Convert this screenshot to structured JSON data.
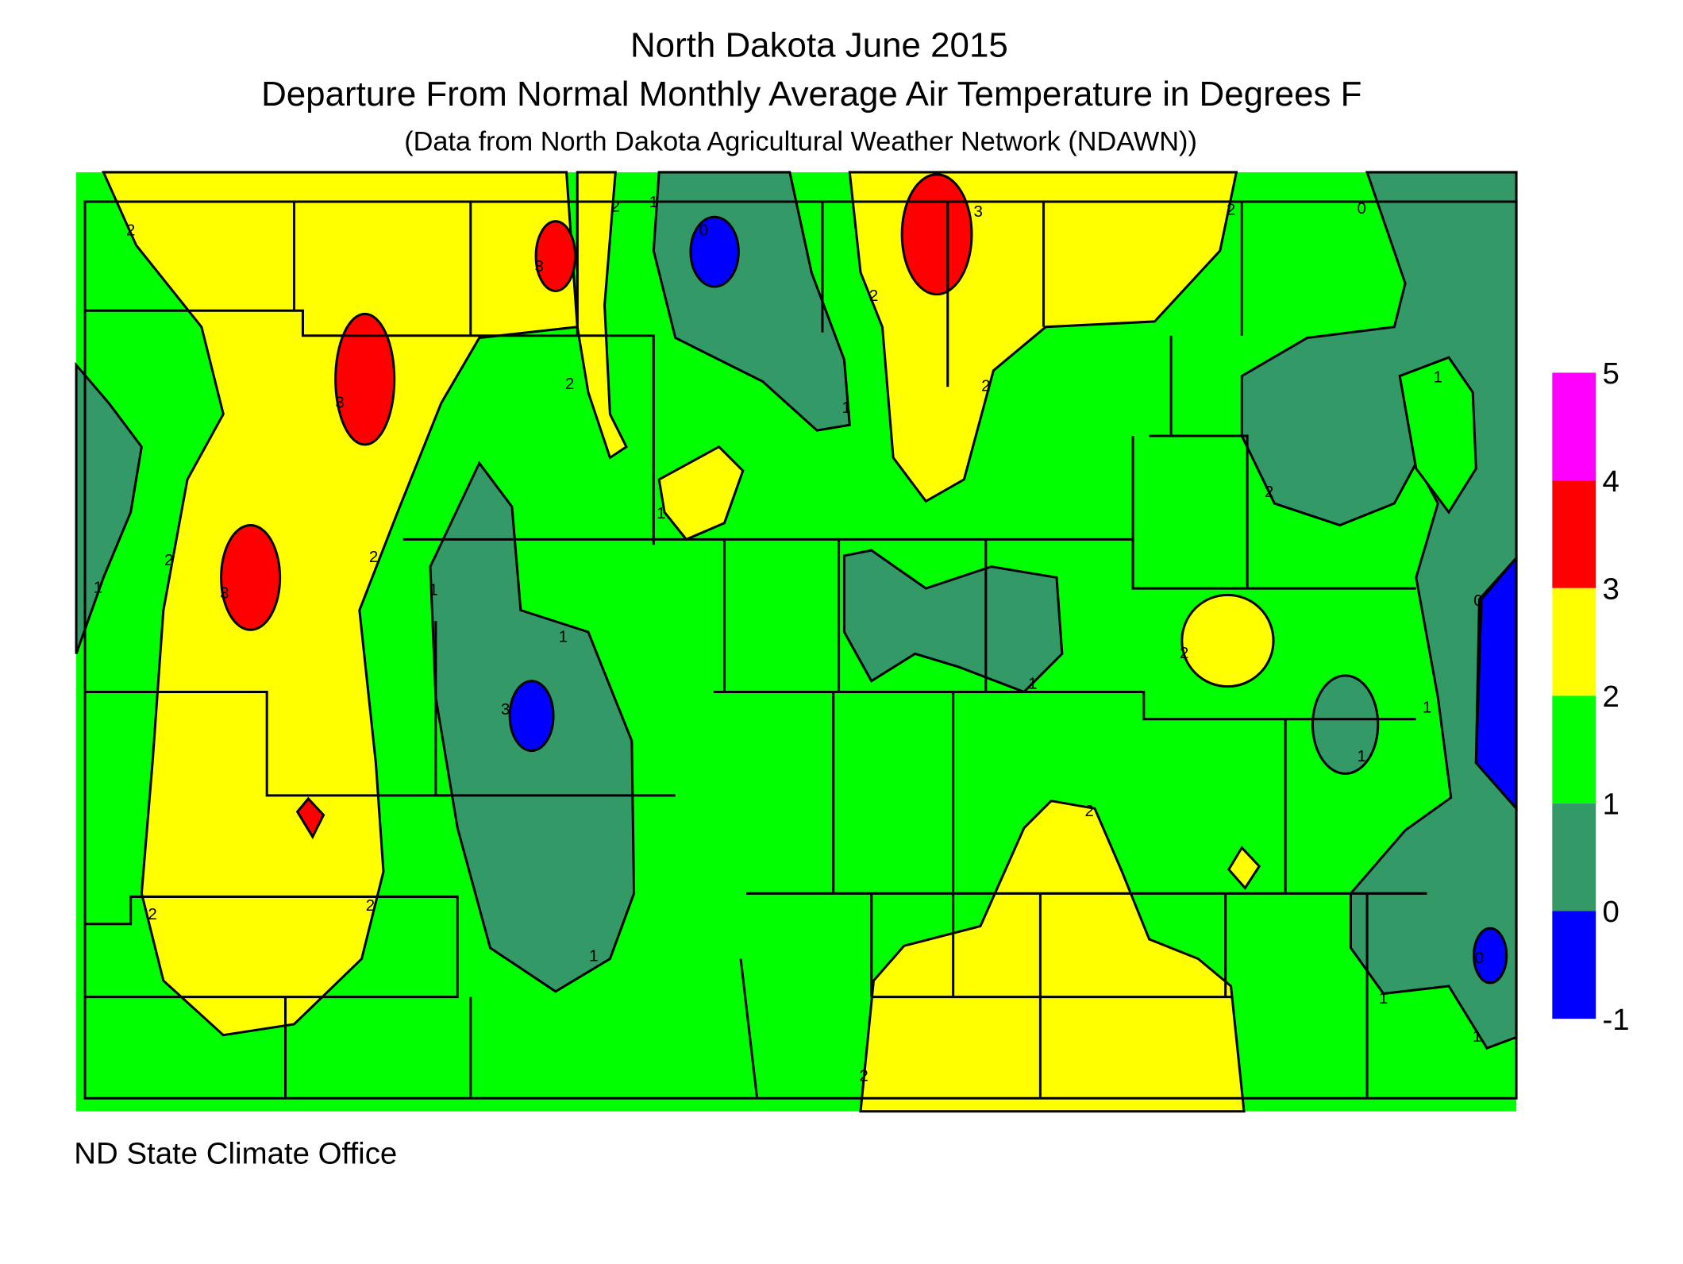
{
  "header": {
    "title": "North Dakota June 2015",
    "subtitle": "Departure From Normal Monthly Average Air Temperature in Degrees F",
    "source_note": "(Data from North Dakota Agricultural Weather Network (NDAWN))"
  },
  "legend": {
    "ticks": [
      -1,
      0,
      1,
      2,
      3,
      4,
      5
    ],
    "colors": [
      "#0000ff",
      "#339966",
      "#00ff00",
      "#ffff00",
      "#ff0000",
      "#ff00ff"
    ]
  },
  "contour_labels": [
    2,
    2,
    1,
    0,
    3,
    3,
    2,
    3,
    2,
    2,
    1,
    3,
    2,
    2,
    1,
    1,
    1,
    2,
    0,
    1,
    2,
    3,
    2,
    2,
    1,
    1,
    2,
    1,
    1,
    1,
    0,
    2,
    2,
    1,
    0,
    1
  ],
  "footer": "ND State Climate Office"
}
